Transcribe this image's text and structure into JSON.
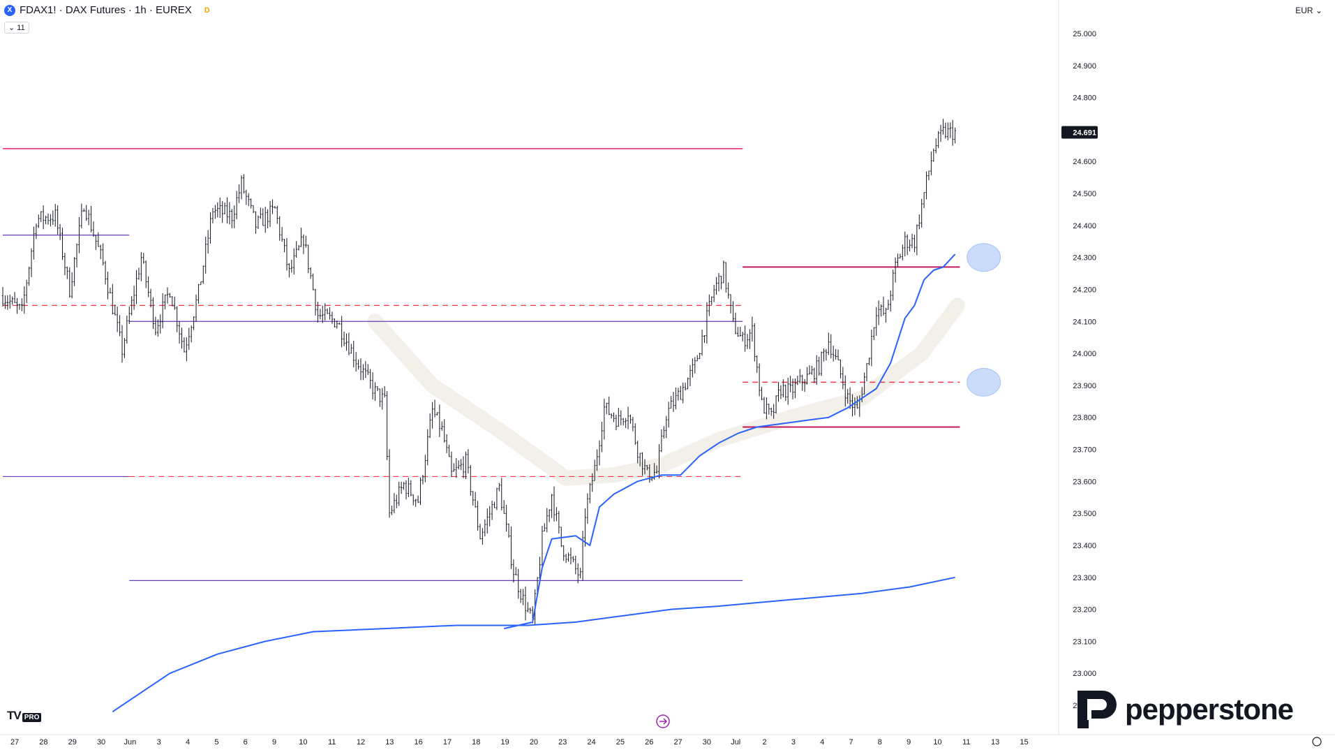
{
  "header": {
    "symbol_icon": "X",
    "title": "FDAX1! · DAX Futures · 1h · EUREX",
    "delay_badge": "D",
    "collapse_label": "11",
    "currency": "EUR"
  },
  "watermarks": {
    "tv_logo": "TV",
    "tv_pro": "PRO",
    "brand": "pepperstone",
    "brand_icon": "pepperstone-logo-icon"
  },
  "chart_data": {
    "type": "candlestick",
    "symbol": "FDAX1!",
    "interval": "1h",
    "last_price": 24691,
    "last_price_label": "24.691",
    "y_axis": {
      "min": 22880,
      "max": 25040,
      "ticks": [
        22900,
        23000,
        23100,
        23200,
        23300,
        23400,
        23500,
        23600,
        23700,
        23800,
        23900,
        24000,
        24100,
        24200,
        24300,
        24400,
        24500,
        24600,
        24700,
        24800,
        24900,
        25000
      ],
      "tick_labels": [
        "22.900",
        "23.000",
        "23.100",
        "23.200",
        "23.300",
        "23.400",
        "23.500",
        "23.600",
        "23.700",
        "23.800",
        "23.900",
        "24.000",
        "24.100",
        "24.200",
        "24.300",
        "24.400",
        "24.500",
        "24.600",
        "24.700",
        "24.800",
        "24.900",
        "25.000"
      ]
    },
    "x_axis": {
      "labels": [
        "27",
        "28",
        "29",
        "30",
        "Jun",
        "3",
        "4",
        "5",
        "6",
        "9",
        "10",
        "11",
        "12",
        "13",
        "16",
        "17",
        "18",
        "19",
        "20",
        "23",
        "24",
        "25",
        "26",
        "27",
        "30",
        "Jul",
        "2",
        "3",
        "4",
        "7",
        "8",
        "9",
        "10",
        "11",
        "13",
        "15"
      ],
      "bars": 400,
      "future_bars": 35
    },
    "price_path": [
      [
        0,
        24180
      ],
      [
        8,
        24130
      ],
      [
        14,
        24420
      ],
      [
        22,
        24430
      ],
      [
        28,
        24200
      ],
      [
        34,
        24470
      ],
      [
        42,
        24280
      ],
      [
        50,
        24010
      ],
      [
        58,
        24300
      ],
      [
        64,
        24080
      ],
      [
        70,
        24200
      ],
      [
        76,
        24010
      ],
      [
        82,
        24190
      ],
      [
        88,
        24450
      ],
      [
        96,
        24430
      ],
      [
        100,
        24530
      ],
      [
        106,
        24400
      ],
      [
        114,
        24450
      ],
      [
        120,
        24250
      ],
      [
        126,
        24360
      ],
      [
        132,
        24120
      ],
      [
        140,
        24100
      ],
      [
        148,
        23980
      ],
      [
        156,
        23880
      ],
      [
        160,
        23850
      ],
      [
        162,
        23500
      ],
      [
        168,
        23590
      ],
      [
        174,
        23540
      ],
      [
        180,
        23820
      ],
      [
        184,
        23760
      ],
      [
        188,
        23620
      ],
      [
        194,
        23660
      ],
      [
        200,
        23430
      ],
      [
        204,
        23500
      ],
      [
        208,
        23580
      ],
      [
        214,
        23320
      ],
      [
        218,
        23230
      ],
      [
        222,
        23160
      ],
      [
        226,
        23420
      ],
      [
        230,
        23560
      ],
      [
        234,
        23400
      ],
      [
        238,
        23350
      ],
      [
        242,
        23300
      ],
      [
        244,
        23500
      ],
      [
        248,
        23640
      ],
      [
        252,
        23830
      ],
      [
        258,
        23790
      ],
      [
        262,
        23820
      ],
      [
        266,
        23700
      ],
      [
        270,
        23620
      ],
      [
        274,
        23630
      ],
      [
        278,
        23810
      ],
      [
        284,
        23880
      ],
      [
        290,
        23960
      ],
      [
        294,
        24080
      ],
      [
        298,
        24200
      ],
      [
        302,
        24260
      ],
      [
        306,
        24090
      ],
      [
        310,
        24040
      ],
      [
        314,
        24070
      ],
      [
        318,
        23840
      ],
      [
        322,
        23800
      ],
      [
        326,
        23890
      ],
      [
        330,
        23880
      ],
      [
        334,
        23910
      ],
      [
        338,
        23930
      ],
      [
        342,
        23960
      ],
      [
        346,
        24040
      ],
      [
        350,
        23960
      ],
      [
        354,
        23860
      ],
      [
        358,
        23820
      ],
      [
        362,
        23960
      ],
      [
        366,
        24140
      ],
      [
        370,
        24120
      ],
      [
        374,
        24270
      ],
      [
        378,
        24350
      ],
      [
        382,
        24350
      ],
      [
        386,
        24500
      ],
      [
        390,
        24640
      ],
      [
        394,
        24690
      ],
      [
        399,
        24691
      ]
    ],
    "ma_fast": [
      [
        210,
        23140
      ],
      [
        222,
        23160
      ],
      [
        226,
        23330
      ],
      [
        230,
        23420
      ],
      [
        240,
        23430
      ],
      [
        246,
        23400
      ],
      [
        250,
        23520
      ],
      [
        256,
        23560
      ],
      [
        266,
        23600
      ],
      [
        276,
        23620
      ],
      [
        284,
        23620
      ],
      [
        292,
        23680
      ],
      [
        300,
        23720
      ],
      [
        308,
        23750
      ],
      [
        316,
        23770
      ],
      [
        326,
        23780
      ],
      [
        336,
        23790
      ],
      [
        346,
        23800
      ],
      [
        354,
        23830
      ],
      [
        360,
        23860
      ],
      [
        366,
        23890
      ],
      [
        372,
        23970
      ],
      [
        378,
        24110
      ],
      [
        382,
        24150
      ],
      [
        386,
        24230
      ],
      [
        390,
        24260
      ],
      [
        394,
        24270
      ],
      [
        399,
        24310
      ]
    ],
    "ma_slow": [
      [
        46,
        22880
      ],
      [
        60,
        22950
      ],
      [
        70,
        23000
      ],
      [
        90,
        23060
      ],
      [
        110,
        23100
      ],
      [
        130,
        23130
      ],
      [
        160,
        23140
      ],
      [
        190,
        23150
      ],
      [
        220,
        23150
      ],
      [
        240,
        23160
      ],
      [
        260,
        23180
      ],
      [
        280,
        23200
      ],
      [
        300,
        23210
      ],
      [
        330,
        23230
      ],
      [
        360,
        23250
      ],
      [
        380,
        23270
      ],
      [
        399,
        23300
      ]
    ],
    "ma_faint": [
      [
        156,
        24100
      ],
      [
        180,
        23900
      ],
      [
        210,
        23750
      ],
      [
        236,
        23610
      ],
      [
        256,
        23620
      ],
      [
        276,
        23650
      ],
      [
        300,
        23730
      ],
      [
        330,
        23800
      ],
      [
        360,
        23860
      ],
      [
        385,
        24000
      ],
      [
        400,
        24150
      ]
    ],
    "levels": [
      {
        "name": "resistance-top",
        "price": 24640,
        "x0": 0,
        "x1": 310,
        "color": "#e91e63",
        "style": "solid",
        "width": 1.5
      },
      {
        "name": "range-high",
        "price": 24370,
        "x0": 0,
        "x1": 53,
        "color": "#673ab7",
        "style": "solid",
        "width": 1.2
      },
      {
        "name": "dashed-upper",
        "price": 24150,
        "x0": 0,
        "x1": 310,
        "color": "#f23645",
        "style": "dashed",
        "width": 1.2
      },
      {
        "name": "range-mid",
        "price": 24100,
        "x0": 53,
        "x1": 310,
        "color": "#673ab7",
        "style": "solid",
        "width": 1.2
      },
      {
        "name": "range-low",
        "price": 23615,
        "x0": 0,
        "x1": 53,
        "color": "#673ab7",
        "style": "solid",
        "width": 1.2
      },
      {
        "name": "dashed-lower",
        "price": 23615,
        "x0": 53,
        "x1": 310,
        "color": "#f23645",
        "style": "dashed",
        "width": 1.2
      },
      {
        "name": "range-bottom",
        "price": 23290,
        "x0": 53,
        "x1": 310,
        "color": "#673ab7",
        "style": "solid",
        "width": 1.2
      },
      {
        "name": "resistance-new",
        "price": 24270,
        "x0": 310,
        "x1": 401,
        "color": "#c2185b",
        "style": "solid",
        "width": 2
      },
      {
        "name": "dashed-new",
        "price": 23910,
        "x0": 310,
        "x1": 401,
        "color": "#f23645",
        "style": "dashed",
        "width": 1.5
      },
      {
        "name": "support-new",
        "price": 23770,
        "x0": 310,
        "x1": 401,
        "color": "#c2185b",
        "style": "solid",
        "width": 2
      }
    ],
    "markers": [
      {
        "name": "marker-upper",
        "bar": 411,
        "price": 24300,
        "color": "#9ec0f5"
      },
      {
        "name": "marker-lower",
        "bar": 411,
        "price": 23910,
        "color": "#9ec0f5"
      }
    ],
    "colors": {
      "candle": "#131722",
      "ma_fast": "#2962ff",
      "ma_slow": "#2962ff",
      "ma_faint": "#f3f0ea",
      "last_price_bg": "#131722"
    }
  }
}
